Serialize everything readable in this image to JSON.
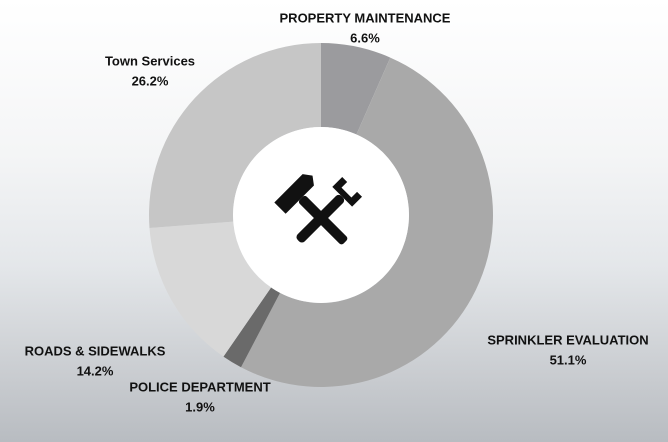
{
  "chart_data": {
    "type": "donut",
    "categories": [
      "PROPERTY MAINTENANCE",
      "SPRINKLER EVALUATION",
      "POLICE DEPARTMENT",
      "ROADS & SIDEWALKS",
      "Town Services"
    ],
    "values": [
      6.6,
      51.1,
      1.9,
      14.2,
      26.2
    ],
    "value_labels": [
      "6.6%",
      "51.1%",
      "1.9%",
      "14.2%",
      "26.2%"
    ],
    "colors": [
      "#9b9b9e",
      "#a9a9a9",
      "#6a6a6a",
      "#d8d8d8",
      "#c6c6c6"
    ]
  }
}
